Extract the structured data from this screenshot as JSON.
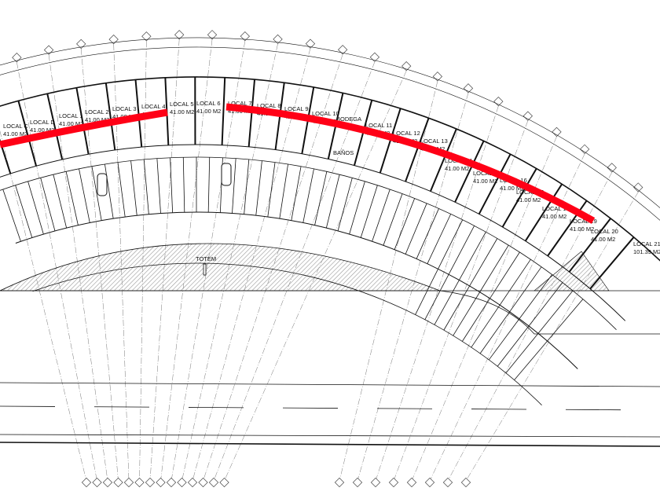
{
  "plan": {
    "units": [
      {
        "label": "LOCAL C",
        "area": "41.00 M2"
      },
      {
        "label": "LOCAL D",
        "area": "41.00 M2"
      },
      {
        "label": "LOCAL 1",
        "area": "41.00 M2"
      },
      {
        "label": "LOCAL 2",
        "area": "41.00 M2"
      },
      {
        "label": "LOCAL 3",
        "area": "41.00 M2"
      },
      {
        "label": "LOCAL 4",
        "area": "41.00 M2"
      },
      {
        "label": "LOCAL 5",
        "area": "41.00 M2"
      },
      {
        "label": "LOCAL 6",
        "area": "41.00 M2"
      },
      {
        "label": "LOCAL 7",
        "area": "41.00 M2"
      },
      {
        "label": "LOCAL 8",
        "area": "41.00 M2"
      },
      {
        "label": "LOCAL 9",
        "area": "41.00 M2"
      },
      {
        "label": "LOCAL 10",
        "area": "41.00 M2"
      },
      {
        "label": "BODEGA",
        "area": ""
      },
      {
        "label": "LOCAL 11",
        "area": "41.00 M2"
      },
      {
        "label": "LOCAL 12",
        "area": "41.00 M2"
      },
      {
        "label": "LOCAL 13",
        "area": "41.00 M2"
      },
      {
        "label": "LOCAL 14",
        "area": "41.00 M2"
      },
      {
        "label": "LOCAL 15",
        "area": "41.00 M2"
      },
      {
        "label": "LOCAL 16",
        "area": "41.00 M2"
      },
      {
        "label": "LOCAL 17",
        "area": "41.00 M2"
      },
      {
        "label": "LOCAL 18",
        "area": "41.00 M2"
      },
      {
        "label": "LOCAL 19",
        "area": "41.00 M2"
      },
      {
        "label": "LOCAL 20",
        "area": "41.00 M2"
      },
      {
        "label": "LOCAL 21",
        "area": "101.39 M2"
      }
    ],
    "restrooms_label": "BAÑOS",
    "totem_label": "TOTEM",
    "highlight_color": "#ff0016",
    "line_color": "#111111",
    "hatch_color": "#9a9a9a"
  }
}
